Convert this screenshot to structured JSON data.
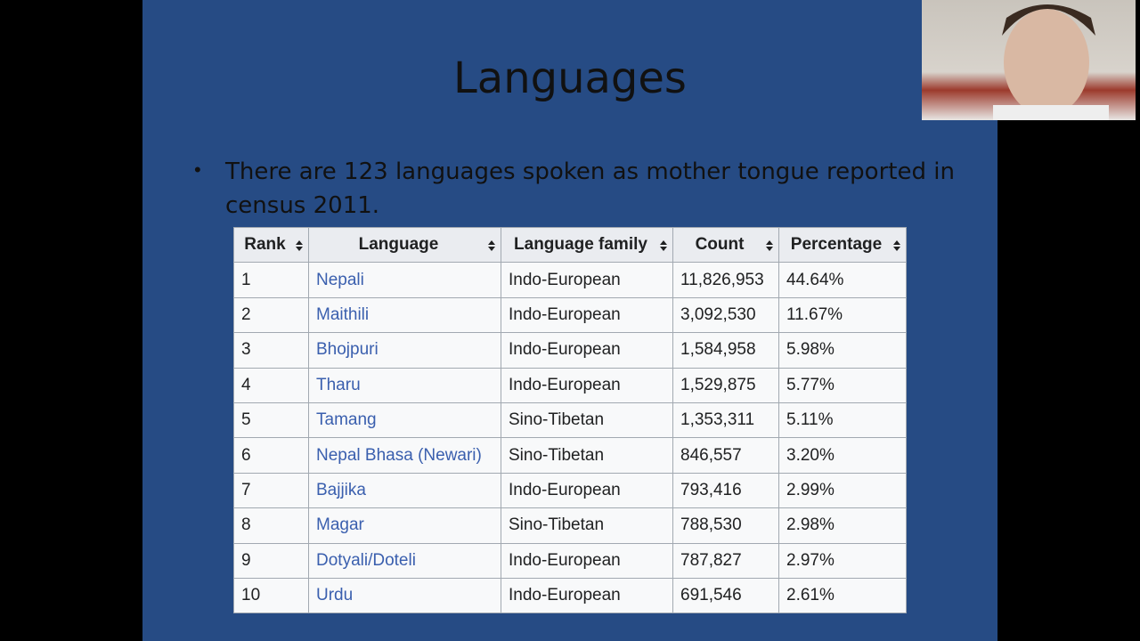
{
  "slide": {
    "title": "Languages",
    "bullet": "There are 123 languages spoken as mother tongue reported in census 2011.",
    "table": {
      "headers": [
        "Rank",
        "Language",
        "Language family",
        "Count",
        "Percentage"
      ],
      "rows": [
        [
          1,
          "Nepali",
          "Indo-European",
          "11,826,953",
          "44.64%"
        ],
        [
          2,
          "Maithili",
          "Indo-European",
          "3,092,530",
          "11.67%"
        ],
        [
          3,
          "Bhojpuri",
          "Indo-European",
          "1,584,958",
          "5.98%"
        ],
        [
          4,
          "Tharu",
          "Indo-European",
          "1,529,875",
          "5.77%"
        ],
        [
          5,
          "Tamang",
          "Sino-Tibetan",
          "1,353,311",
          "5.11%"
        ],
        [
          6,
          "Nepal Bhasa (Newari)",
          "Sino-Tibetan",
          "846,557",
          "3.20%"
        ],
        [
          7,
          "Bajjika",
          "Indo-European",
          "793,416",
          "2.99%"
        ],
        [
          8,
          "Magar",
          "Sino-Tibetan",
          "788,530",
          "2.98%"
        ],
        [
          9,
          "Dotyali/Doteli",
          "Indo-European",
          "787,827",
          "2.97%"
        ],
        [
          10,
          "Urdu",
          "Indo-European",
          "691,546",
          "2.61%"
        ]
      ]
    }
  }
}
